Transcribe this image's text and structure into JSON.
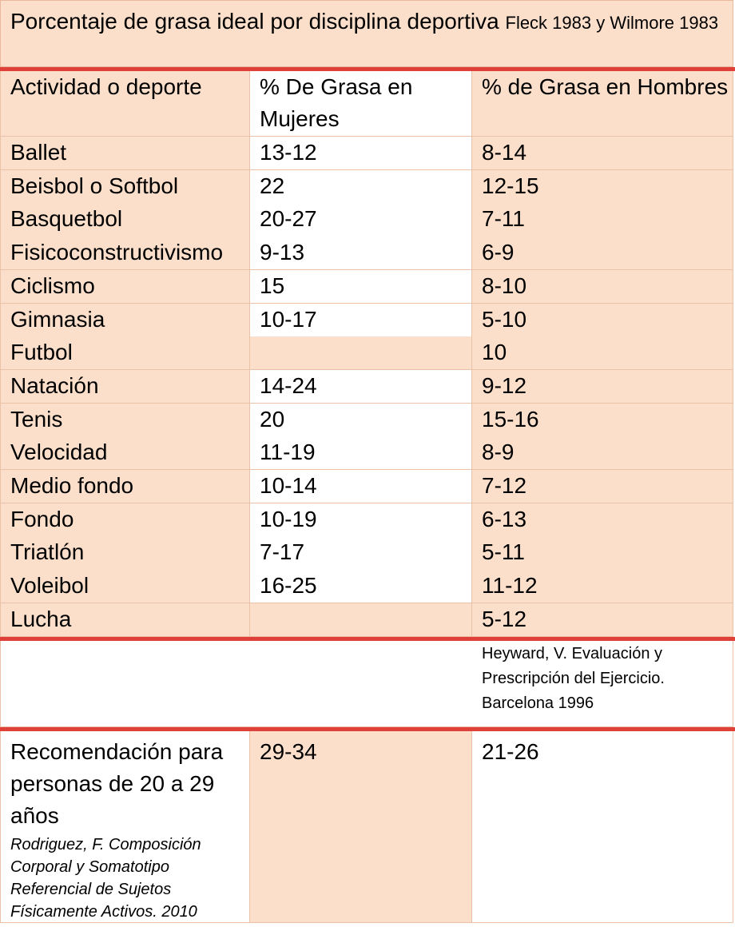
{
  "title": {
    "main": "Porcentaje de grasa ideal por disciplina deportiva",
    "citation": "Fleck 1983 y Wilmore 1983"
  },
  "headers": [
    "Actividad o deporte",
    "% De Grasa en Mujeres",
    "% de Grasa en Hombres"
  ],
  "rows": [
    {
      "sport": "Ballet",
      "women": "13-12",
      "men": "8-14"
    },
    {
      "sport": "Beisbol o Softbol",
      "women": "22",
      "men": "12-15"
    },
    {
      "sport": "Basquetbol",
      "women": "20-27",
      "men": "7-11"
    },
    {
      "sport": "Fisicoconstructivismo",
      "women": "9-13",
      "men": "6-9"
    },
    {
      "sport": "Ciclismo",
      "women": "15",
      "men": "8-10"
    },
    {
      "sport": "Gimnasia",
      "women": "10-17",
      "men": "5-10"
    },
    {
      "sport": "Futbol",
      "women": "",
      "men": "10"
    },
    {
      "sport": "Natación",
      "women": "14-24",
      "men": "9-12"
    },
    {
      "sport": "Tenis",
      "women": "20",
      "men": "15-16"
    },
    {
      "sport": "Velocidad",
      "women": "11-19",
      "men": "8-9"
    },
    {
      "sport": "Medio fondo",
      "women": "10-14",
      "men": "7-12"
    },
    {
      "sport": "Fondo",
      "women": "10-19",
      "men": "6-13"
    },
    {
      "sport": "Triatlón",
      "women": "7-17",
      "men": "5-11"
    },
    {
      "sport": "Voleibol",
      "women": "16-25",
      "men": "11-12"
    },
    {
      "sport": "Lucha",
      "women": "",
      "men": "5-12"
    }
  ],
  "source": [
    "Heyward, V. Evaluación y",
    "Prescripción del Ejercicio.",
    "Barcelona 1996"
  ],
  "recommendation": {
    "label": "Recomendación para personas de 20 a 29 años",
    "reference": "Rodriguez, F. Composición Corporal y Somatotipo Referencial de Sujetos Físicamente Activos. 2010",
    "women": "29-34",
    "men": "21-26"
  }
}
